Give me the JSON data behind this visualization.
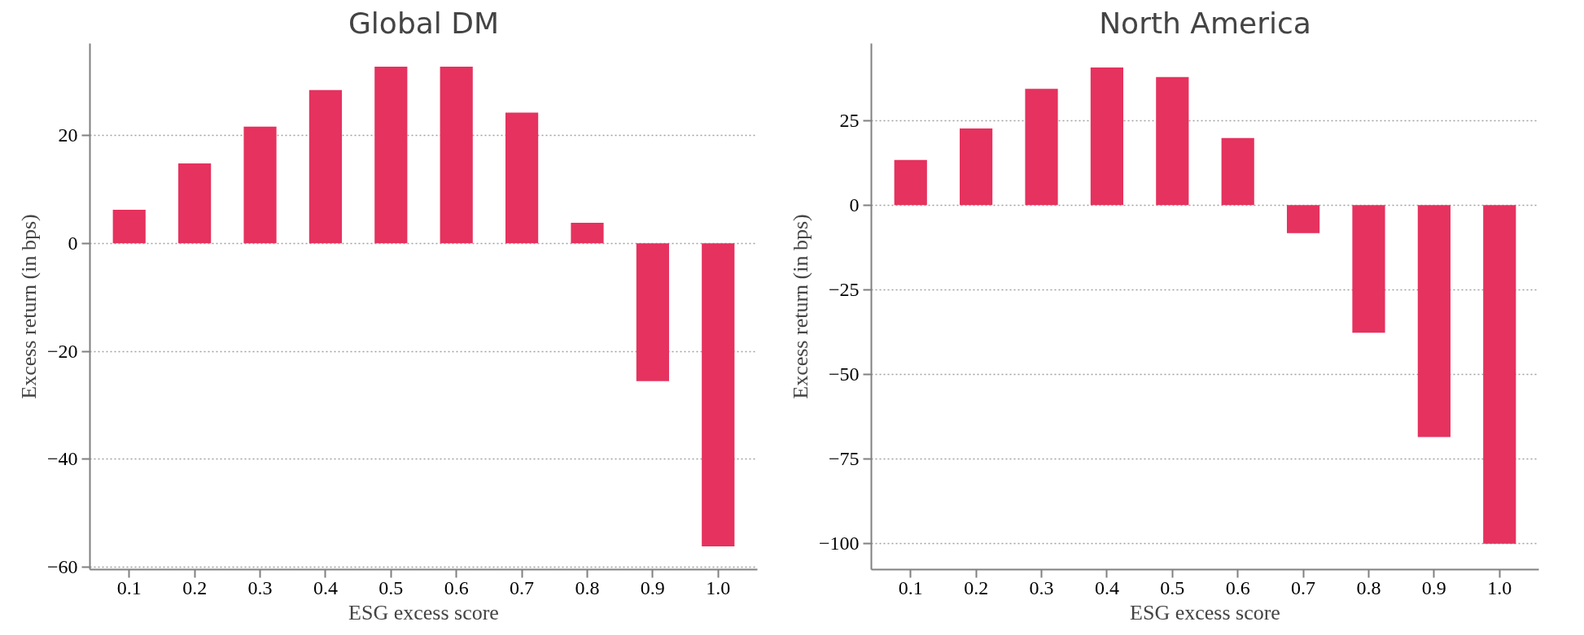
{
  "chart_data": [
    {
      "type": "bar",
      "title": "Global DM",
      "xlabel": "ESG excess score",
      "ylabel": "Excess return (in bps)",
      "categories": [
        "0.1",
        "0.2",
        "0.3",
        "0.4",
        "0.5",
        "0.6",
        "0.7",
        "0.8",
        "0.9",
        "1.0"
      ],
      "values": [
        6.2,
        14.8,
        21.6,
        28.4,
        32.7,
        32.7,
        24.2,
        3.8,
        -25.5,
        -56.1
      ],
      "color": "#e5325e",
      "ylim": [
        -60.4,
        37
      ],
      "yticks": [
        {
          "value": -60,
          "label": "−60"
        },
        {
          "value": -40,
          "label": "−40"
        },
        {
          "value": -20,
          "label": "−20"
        },
        0,
        20
      ],
      "grid": "y"
    },
    {
      "type": "bar",
      "title": "North America",
      "xlabel": "ESG excess score",
      "ylabel": "Excess return (in bps)",
      "categories": [
        "0.1",
        "0.2",
        "0.3",
        "0.4",
        "0.5",
        "0.6",
        "0.7",
        "0.8",
        "0.9",
        "1.0"
      ],
      "values": [
        13.3,
        22.6,
        34.3,
        40.6,
        37.8,
        19.8,
        -8.3,
        -37.7,
        -68.5,
        -100
      ],
      "color": "#e5325e",
      "ylim": [
        -107.6,
        47.7
      ],
      "yticks": [
        {
          "value": -100,
          "label": "−100"
        },
        {
          "value": -75,
          "label": "−75"
        },
        {
          "value": -50,
          "label": "−50"
        },
        {
          "value": -25,
          "label": "−25"
        },
        0,
        25
      ],
      "grid": "y"
    }
  ]
}
